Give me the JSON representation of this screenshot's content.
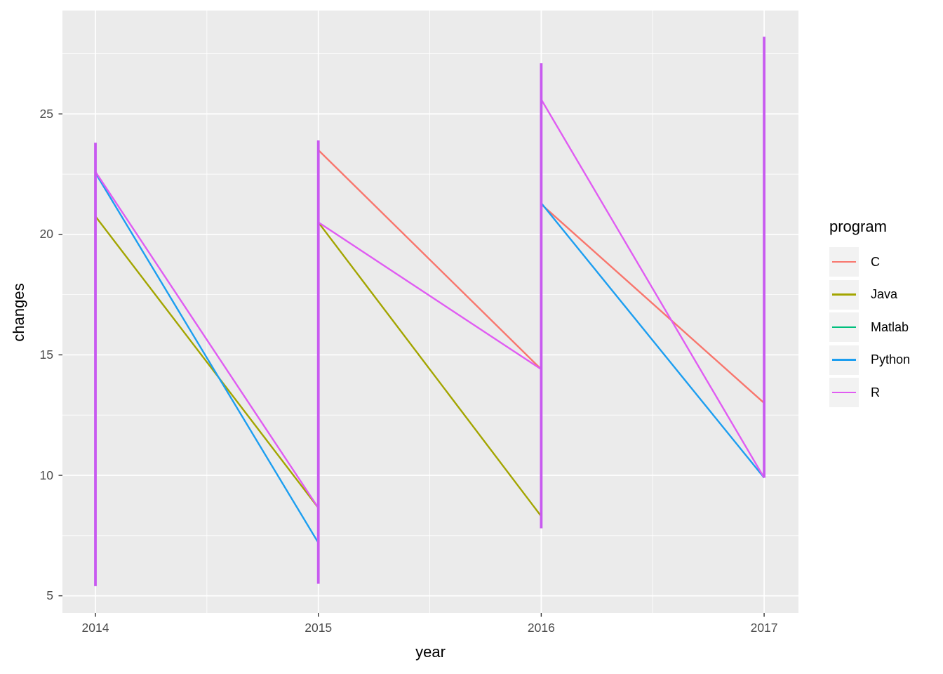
{
  "figure": {
    "background": "#FFFFFF"
  },
  "chart_data": {
    "type": "line",
    "title": "",
    "xlabel": "year",
    "ylabel": "changes",
    "x_tick_labels": [
      "2014",
      "2015",
      "2016",
      "2017"
    ],
    "x_tick_values": [
      2014,
      2015,
      2016,
      2017
    ],
    "y_tick_labels": [
      "5",
      "10",
      "15",
      "20",
      "25"
    ],
    "y_tick_values": [
      5,
      10,
      15,
      20,
      25
    ],
    "x_minor_values": [
      2014.5,
      2015.5,
      2016.5
    ],
    "y_minor_values": [
      7.5,
      12.5,
      17.5,
      22.5,
      27.5
    ],
    "xlim": [
      2013.852,
      2017.154
    ],
    "ylim": [
      4.29,
      29.29
    ],
    "grid": "on",
    "panel_bg": "#EBEBEB",
    "grid_color": "#FFFFFF",
    "tick_mark_color": "#333333",
    "tick_label_color": "#4D4D4D",
    "legend": {
      "title": "program",
      "position": "right",
      "entries": [
        "C",
        "Java",
        "Matlab",
        "Python",
        "R"
      ]
    },
    "series": [
      {
        "name": "C",
        "color": "#F8766D",
        "segments": [
          [
            2015,
            23.5,
            2016,
            14.4
          ],
          [
            2016,
            21.25,
            2017,
            13.0
          ]
        ]
      },
      {
        "name": "Java",
        "color": "#A3A500",
        "segments": [
          [
            2014,
            20.75,
            2015,
            8.65
          ],
          [
            2015,
            20.5,
            2016,
            8.3
          ]
        ]
      },
      {
        "name": "Matlab",
        "color": "#00BF7D",
        "segments": []
      },
      {
        "name": "Python",
        "color": "#1C9EF0",
        "segments": [
          [
            2014,
            22.55,
            2015,
            7.2
          ],
          [
            2016,
            21.3,
            2017,
            9.9
          ]
        ]
      },
      {
        "name": "R",
        "color": "#E05CF2",
        "segments": [
          [
            2014,
            22.6,
            2015,
            8.65
          ],
          [
            2015,
            20.5,
            2016,
            14.4
          ],
          [
            2016,
            25.6,
            2017,
            9.9
          ]
        ]
      }
    ],
    "vertical_ranges": [
      {
        "x": 2014,
        "min": 5.4,
        "max": 23.8
      },
      {
        "x": 2015,
        "min": 5.5,
        "max": 23.9
      },
      {
        "x": 2016,
        "min": 7.8,
        "max": 27.1
      },
      {
        "x": 2017,
        "min": 9.9,
        "max": 28.2
      }
    ],
    "vertical_color": "#C85AF0"
  }
}
